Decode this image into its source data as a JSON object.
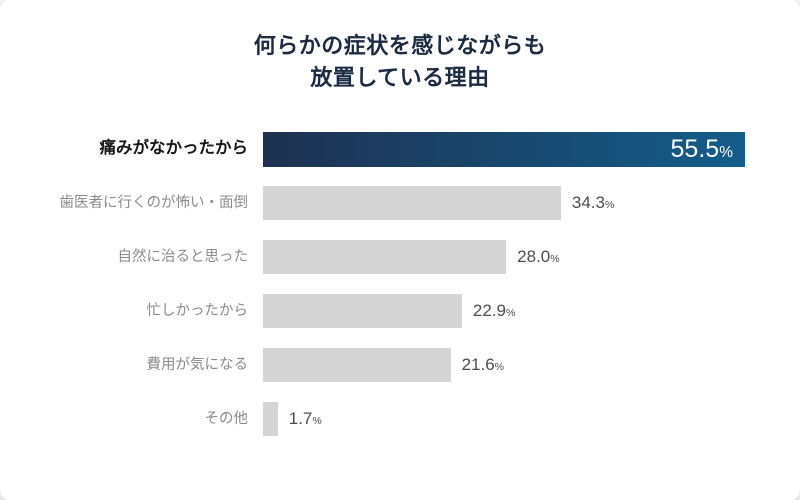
{
  "title": {
    "line1": "何らかの症状を感じながらも",
    "line2": "放置している理由"
  },
  "colors": {
    "title_navy": "#1b2b42",
    "highlight_gradient_start": "#1e3151",
    "highlight_gradient_end": "#135d8a",
    "bar_gray": "#d5d5d5",
    "label_gray": "#8b8b8b",
    "label_dark": "#15151a",
    "value_gray": "#4d4d4d",
    "value_white": "#ffffff"
  },
  "chart_data": {
    "type": "bar",
    "orientation": "horizontal",
    "title": "何らかの症状を感じながらも放置している理由",
    "categories": [
      "痛みがなかったから",
      "歯医者に行くのが怖い・面倒",
      "自然に治ると思った",
      "忙しかったから",
      "費用が気になる",
      "その他"
    ],
    "values": [
      55.5,
      34.3,
      28.0,
      22.9,
      21.6,
      1.7
    ],
    "unit": "%",
    "xlim": [
      0,
      55.5
    ],
    "highlight_index": 0,
    "grid": false,
    "legend": false,
    "value_labels": "shown, inside bar for highlighted row, right of bar otherwise"
  }
}
